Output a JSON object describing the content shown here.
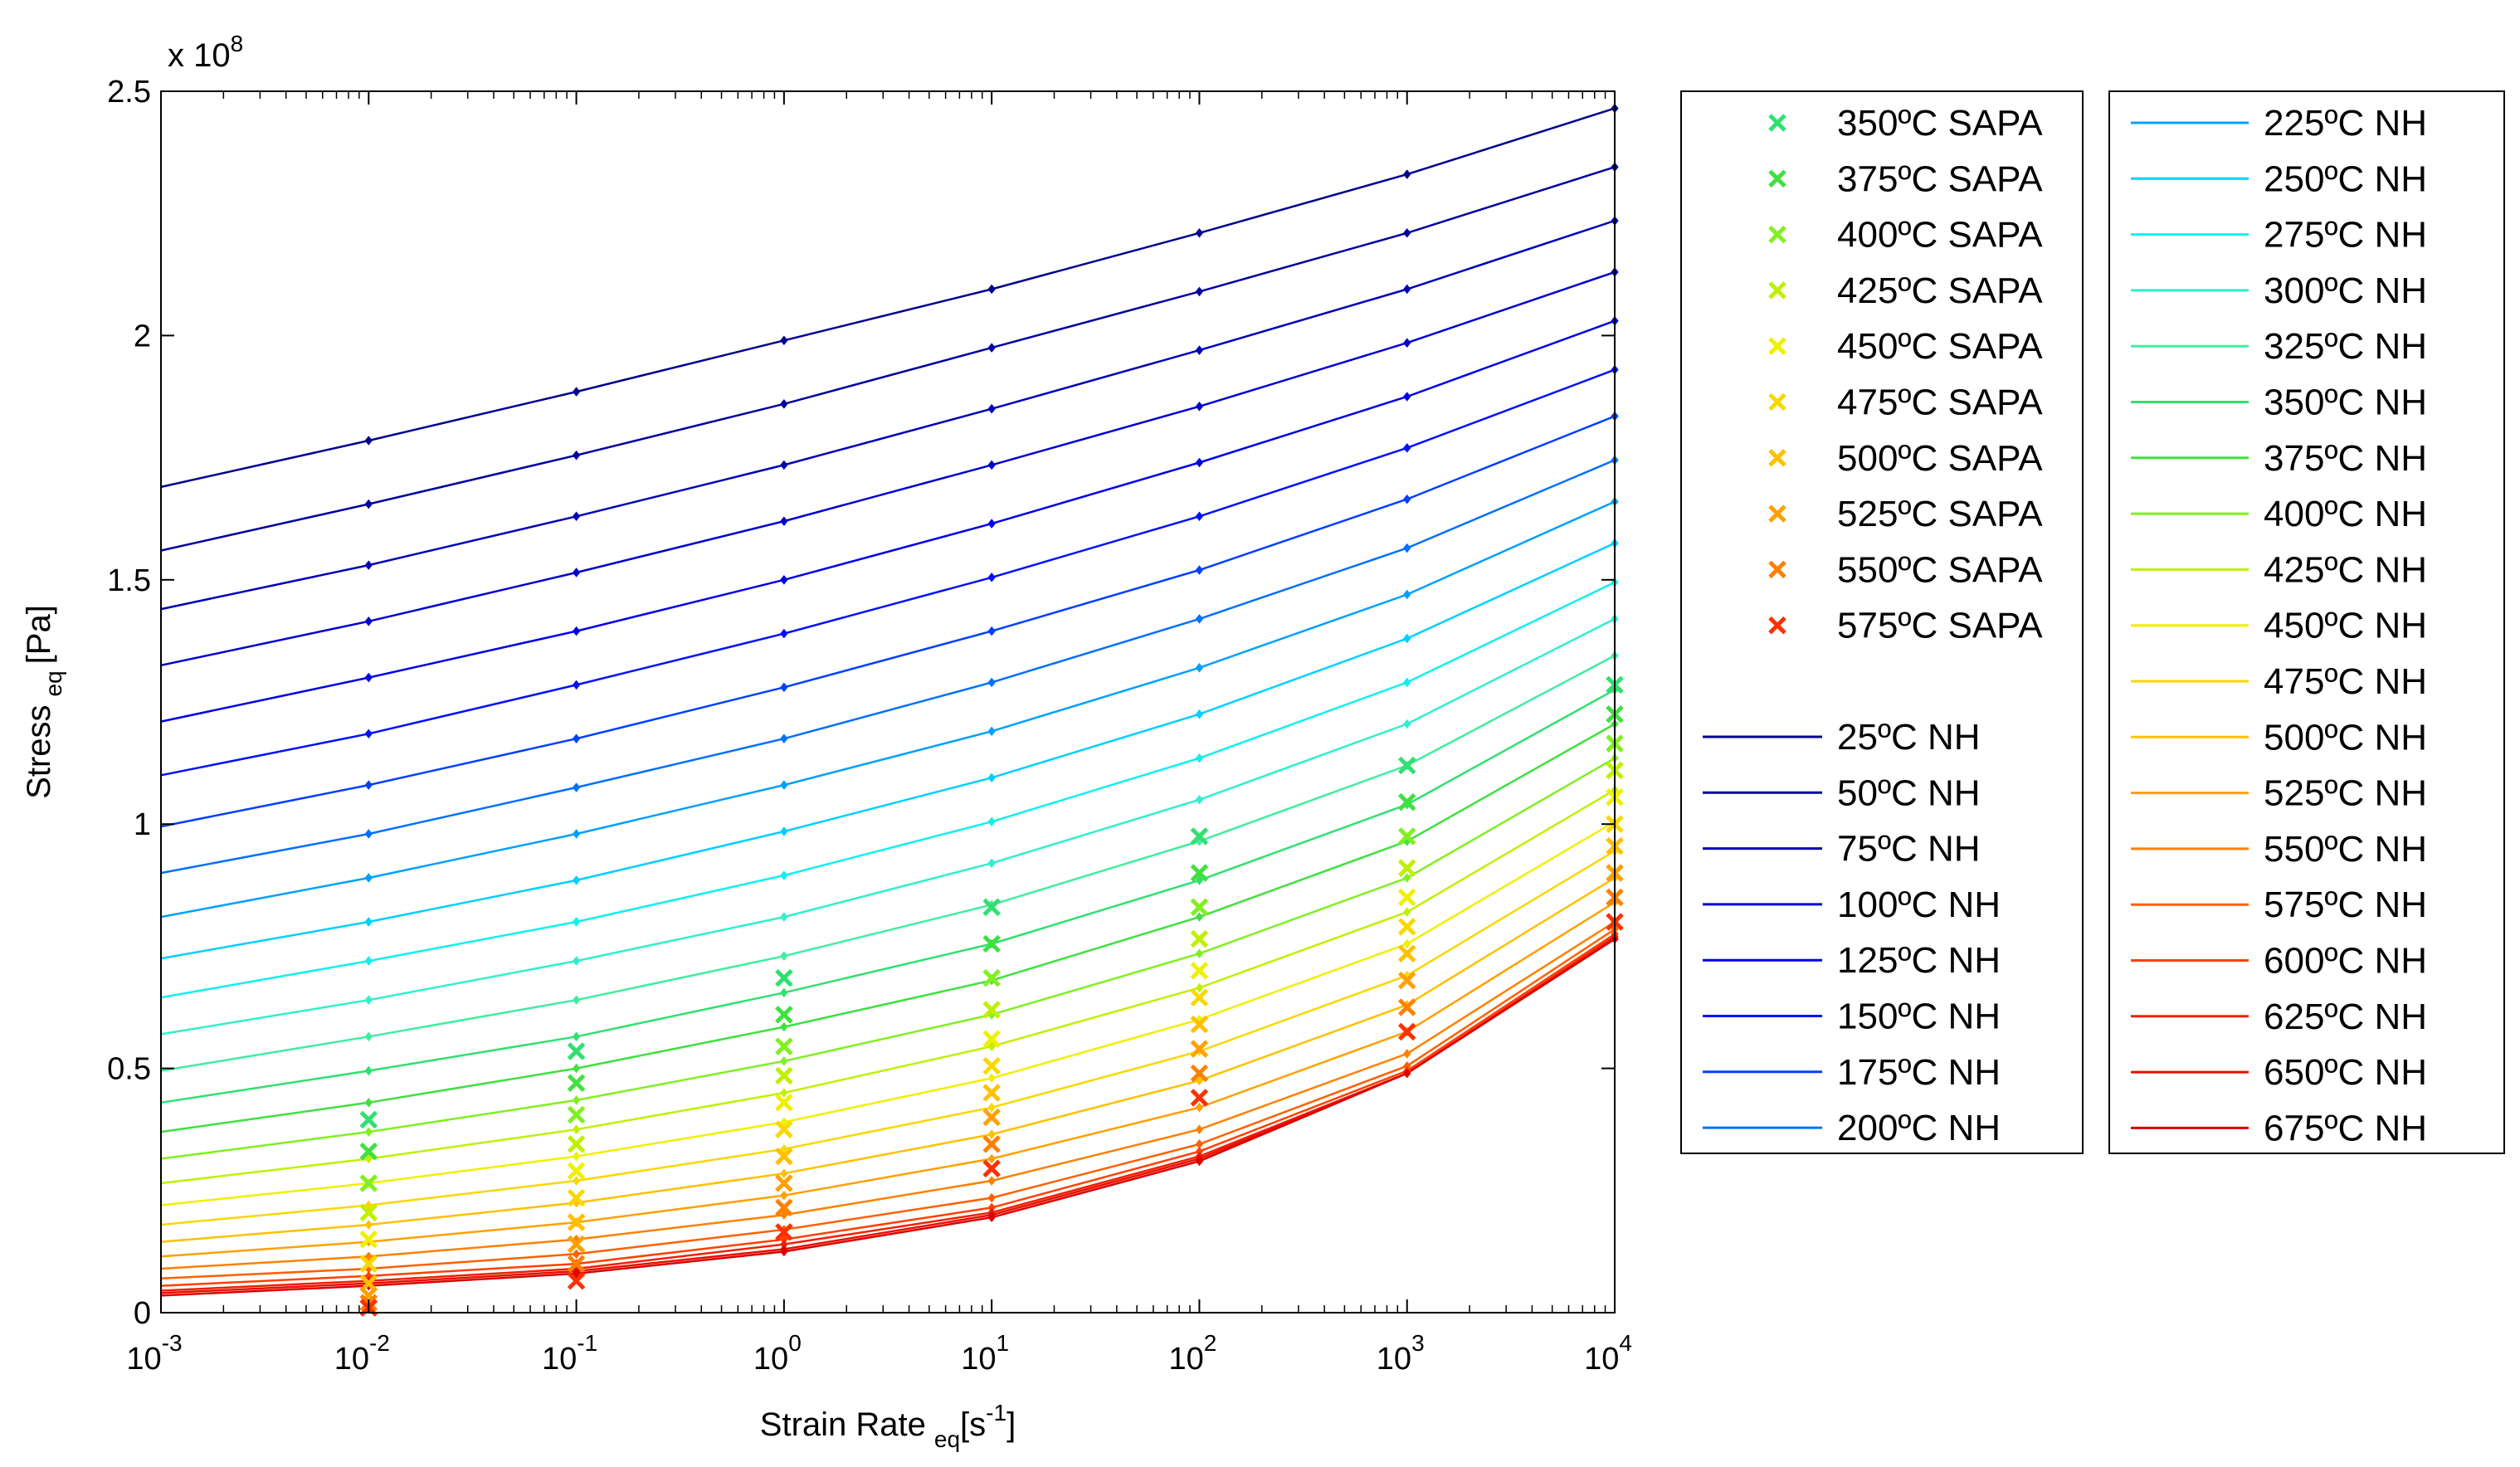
{
  "chart_data": {
    "type": "line",
    "title": "",
    "xlabel": "Strain Rate",
    "xlabel_sub": "eq",
    "xlabel_unit": "[s",
    "xlabel_unit_exp": "-1",
    "xlabel_unit_close": "]",
    "ylabel": "Stress",
    "ylabel_sub": "eq",
    "ylabel_unit": "[Pa]",
    "xscale": "log",
    "xlim": [
      0.001,
      10000
    ],
    "ylim": [
      0,
      2.5
    ],
    "y_multiplier": "x 10",
    "y_multiplier_exp": "8",
    "x_ticks": [
      {
        "base": "10",
        "exp": "-3"
      },
      {
        "base": "10",
        "exp": "-2"
      },
      {
        "base": "10",
        "exp": "-1"
      },
      {
        "base": "10",
        "exp": "0"
      },
      {
        "base": "10",
        "exp": "1"
      },
      {
        "base": "10",
        "exp": "2"
      },
      {
        "base": "10",
        "exp": "3"
      },
      {
        "base": "10",
        "exp": "4"
      }
    ],
    "y_ticks": [
      "0",
      "0.5",
      "1",
      "1.5",
      "2",
      "2.5"
    ],
    "y_tick_values": [
      0,
      0.5,
      1,
      1.5,
      2,
      2.5
    ],
    "x": [
      0.001,
      0.01,
      0.1,
      1,
      10,
      100,
      1000,
      10000
    ],
    "nh_series": [
      {
        "name": "25ºC NH",
        "color": "#00008F",
        "values": [
          1.69,
          1.785,
          1.885,
          1.99,
          2.095,
          2.21,
          2.33,
          2.465
        ]
      },
      {
        "name": "50ºC NH",
        "color": "#0000A0",
        "values": [
          1.56,
          1.655,
          1.755,
          1.86,
          1.975,
          2.09,
          2.21,
          2.345
        ]
      },
      {
        "name": "75ºC NH",
        "color": "#0000B8",
        "values": [
          1.44,
          1.53,
          1.63,
          1.735,
          1.85,
          1.97,
          2.095,
          2.235
        ]
      },
      {
        "name": "100ºC NH",
        "color": "#0000D0",
        "values": [
          1.325,
          1.415,
          1.515,
          1.62,
          1.735,
          1.855,
          1.985,
          2.13
        ]
      },
      {
        "name": "125ºC NH",
        "color": "#0000E8",
        "values": [
          1.21,
          1.3,
          1.395,
          1.5,
          1.615,
          1.74,
          1.875,
          2.03
        ]
      },
      {
        "name": "150ºC NH",
        "color": "#0010FF",
        "values": [
          1.1,
          1.185,
          1.285,
          1.39,
          1.505,
          1.63,
          1.77,
          1.93
        ]
      },
      {
        "name": "175ºC NH",
        "color": "#0040FF",
        "values": [
          0.995,
          1.08,
          1.175,
          1.28,
          1.395,
          1.52,
          1.665,
          1.835
        ]
      },
      {
        "name": "200ºC NH",
        "color": "#0070FF",
        "values": [
          0.9,
          0.98,
          1.075,
          1.175,
          1.29,
          1.42,
          1.565,
          1.745
        ]
      },
      {
        "name": "225ºC NH",
        "color": "#00A0FF",
        "values": [
          0.81,
          0.89,
          0.98,
          1.08,
          1.19,
          1.32,
          1.47,
          1.66
        ]
      },
      {
        "name": "250ºC NH",
        "color": "#00D0FF",
        "values": [
          0.725,
          0.8,
          0.885,
          0.985,
          1.095,
          1.225,
          1.38,
          1.575
        ]
      },
      {
        "name": "275ºC NH",
        "color": "#10F0EE",
        "values": [
          0.645,
          0.72,
          0.8,
          0.895,
          1.005,
          1.135,
          1.29,
          1.495
        ]
      },
      {
        "name": "300ºC NH",
        "color": "#30F0CC",
        "values": [
          0.57,
          0.64,
          0.72,
          0.81,
          0.92,
          1.05,
          1.205,
          1.42
        ]
      },
      {
        "name": "325ºC NH",
        "color": "#40EEA0",
        "values": [
          0.495,
          0.565,
          0.64,
          0.73,
          0.835,
          0.965,
          1.12,
          1.345
        ]
      },
      {
        "name": "350ºC NH",
        "color": "#30E070",
        "values": [
          0.43,
          0.495,
          0.565,
          0.655,
          0.755,
          0.885,
          1.04,
          1.275
        ]
      },
      {
        "name": "375ºC NH",
        "color": "#40E040",
        "values": [
          0.37,
          0.43,
          0.5,
          0.585,
          0.68,
          0.81,
          0.965,
          1.205
        ]
      },
      {
        "name": "400ºC NH",
        "color": "#80F020",
        "values": [
          0.315,
          0.37,
          0.435,
          0.515,
          0.61,
          0.735,
          0.89,
          1.135
        ]
      },
      {
        "name": "425ºC NH",
        "color": "#C0F000",
        "values": [
          0.265,
          0.315,
          0.375,
          0.45,
          0.545,
          0.665,
          0.82,
          1.07
        ]
      },
      {
        "name": "450ºC NH",
        "color": "#F0F000",
        "values": [
          0.22,
          0.265,
          0.32,
          0.39,
          0.48,
          0.6,
          0.755,
          1.005
        ]
      },
      {
        "name": "475ºC NH",
        "color": "#F8D800",
        "values": [
          0.18,
          0.22,
          0.27,
          0.335,
          0.42,
          0.535,
          0.69,
          0.945
        ]
      },
      {
        "name": "500ºC NH",
        "color": "#FFC000",
        "values": [
          0.145,
          0.18,
          0.225,
          0.285,
          0.365,
          0.475,
          0.63,
          0.89
        ]
      },
      {
        "name": "525ºC NH",
        "color": "#FFA000",
        "values": [
          0.115,
          0.145,
          0.185,
          0.24,
          0.315,
          0.42,
          0.575,
          0.84
        ]
      },
      {
        "name": "550ºC NH",
        "color": "#FF8000",
        "values": [
          0.09,
          0.115,
          0.15,
          0.2,
          0.27,
          0.375,
          0.53,
          0.8
        ]
      },
      {
        "name": "575ºC NH",
        "color": "#FF6000",
        "values": [
          0.07,
          0.09,
          0.12,
          0.17,
          0.235,
          0.345,
          0.505,
          0.785
        ]
      },
      {
        "name": "600ºC NH",
        "color": "#FF4000",
        "values": [
          0.055,
          0.075,
          0.1,
          0.15,
          0.215,
          0.33,
          0.495,
          0.775
        ]
      },
      {
        "name": "625ºC NH",
        "color": "#F02000",
        "values": [
          0.045,
          0.065,
          0.09,
          0.14,
          0.205,
          0.32,
          0.49,
          0.77
        ]
      },
      {
        "name": "650ºC NH",
        "color": "#E81000",
        "values": [
          0.04,
          0.06,
          0.085,
          0.13,
          0.2,
          0.315,
          0.49,
          0.765
        ]
      },
      {
        "name": "675ºC NH",
        "color": "#DC0000",
        "values": [
          0.035,
          0.055,
          0.08,
          0.125,
          0.195,
          0.31,
          0.49,
          0.765
        ]
      }
    ],
    "sapa_series": [
      {
        "name": "350ºC SAPA",
        "color": "#30E070",
        "x": [
          0.01,
          0.1,
          1,
          10,
          100,
          1000,
          10000
        ],
        "values": [
          0.395,
          0.535,
          0.685,
          0.83,
          0.975,
          1.12,
          1.285
        ]
      },
      {
        "name": "375ºC SAPA",
        "color": "#40E040",
        "x": [
          0.01,
          0.1,
          1,
          10,
          100,
          1000,
          10000
        ],
        "values": [
          0.33,
          0.47,
          0.61,
          0.755,
          0.9,
          1.045,
          1.225
        ]
      },
      {
        "name": "400ºC SAPA",
        "color": "#80F020",
        "x": [
          0.01,
          0.1,
          1,
          10,
          100,
          1000,
          10000
        ],
        "values": [
          0.265,
          0.405,
          0.545,
          0.685,
          0.83,
          0.975,
          1.165
        ]
      },
      {
        "name": "425ºC SAPA",
        "color": "#C0F000",
        "x": [
          0.01,
          0.1,
          1,
          10,
          100,
          1000,
          10000
        ],
        "values": [
          0.205,
          0.345,
          0.485,
          0.62,
          0.765,
          0.91,
          1.11
        ]
      },
      {
        "name": "450ºC SAPA",
        "color": "#F0F000",
        "x": [
          0.01,
          0.1,
          1,
          10,
          100,
          1000,
          10000
        ],
        "values": [
          0.15,
          0.29,
          0.43,
          0.56,
          0.7,
          0.85,
          1.055
        ]
      },
      {
        "name": "475ºC SAPA",
        "color": "#F8D800",
        "x": [
          0.01,
          0.1,
          1,
          10,
          100,
          1000,
          10000
        ],
        "values": [
          0.1,
          0.235,
          0.375,
          0.505,
          0.645,
          0.79,
          1.0
        ]
      },
      {
        "name": "500ºC SAPA",
        "color": "#FFC000",
        "x": [
          0.01,
          0.1,
          1,
          10,
          100,
          1000,
          10000
        ],
        "values": [
          0.06,
          0.185,
          0.32,
          0.45,
          0.59,
          0.735,
          0.955
        ]
      },
      {
        "name": "525ºC SAPA",
        "color": "#FFA000",
        "x": [
          0.01,
          0.1,
          1,
          10,
          100,
          1000,
          10000
        ],
        "values": [
          0.035,
          0.14,
          0.265,
          0.4,
          0.54,
          0.68,
          0.9
        ]
      },
      {
        "name": "550ºC SAPA",
        "color": "#FF8000",
        "x": [
          0.01,
          0.1,
          1,
          10,
          100,
          1000,
          10000
        ],
        "values": [
          0.02,
          0.1,
          0.215,
          0.345,
          0.49,
          0.625,
          0.85
        ]
      },
      {
        "name": "575ºC SAPA",
        "color": "#FF3000",
        "x": [
          0.01,
          0.1,
          1,
          10,
          100,
          1000,
          10000
        ],
        "values": [
          0.01,
          0.065,
          0.165,
          0.295,
          0.44,
          0.575,
          0.8
        ]
      }
    ],
    "legend_placement": "right"
  }
}
